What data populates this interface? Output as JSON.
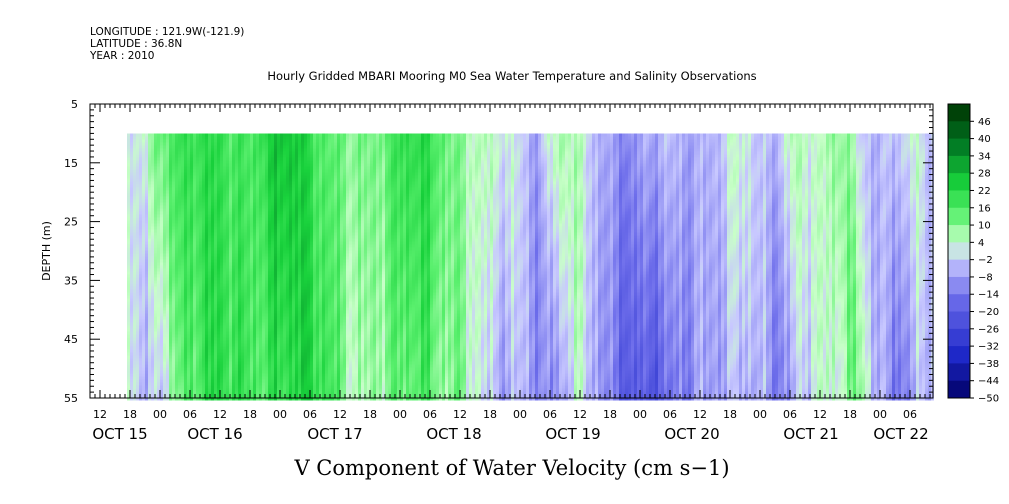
{
  "header": {
    "longitude": "LONGITUDE : 121.9W(-121.9)",
    "latitude": "LATITUDE : 36.8N",
    "year": "YEAR : 2010"
  },
  "chart_data": {
    "type": "heatmap",
    "title": "Hourly Gridded MBARI Mooring M0 Sea Water Temperature and Salinity Observations",
    "xlabel": "V Component of Water Velocity (cm s−1)",
    "ylabel": "DEPTH (m)",
    "ylim": [
      55,
      5
    ],
    "y_ticks": [
      "5",
      "15",
      "25",
      "35",
      "45",
      "55"
    ],
    "x_hour_ticks": [
      "12",
      "18",
      "00",
      "06",
      "12",
      "18",
      "00",
      "06",
      "12",
      "18",
      "00",
      "06",
      "12",
      "18",
      "00",
      "06",
      "12",
      "18",
      "00",
      "06",
      "12",
      "18",
      "00",
      "06",
      "12",
      "18",
      "00",
      "06"
    ],
    "x_day_labels": [
      "OCT 15",
      "OCT 16",
      "OCT 17",
      "OCT 18",
      "OCT 19",
      "OCT 20",
      "OCT 21",
      "OCT 22"
    ],
    "data_depth_range": [
      10,
      55
    ],
    "colorbar_labels": [
      "46",
      "40",
      "34",
      "28",
      "22",
      "16",
      "10",
      "4",
      "−2",
      "−8",
      "−14",
      "−20",
      "−26",
      "−32",
      "−38",
      "−44",
      "−50"
    ],
    "colorbar_range": [
      -50,
      52
    ],
    "colorbar_levels": 17,
    "colors": {
      "strong_positive": "#003300",
      "positive": "#33dd44",
      "near_zero_pos": "#ccffcc",
      "near_zero_neg": "#c8c8ff",
      "negative": "#4444cc",
      "strong_negative": "#000066"
    }
  }
}
